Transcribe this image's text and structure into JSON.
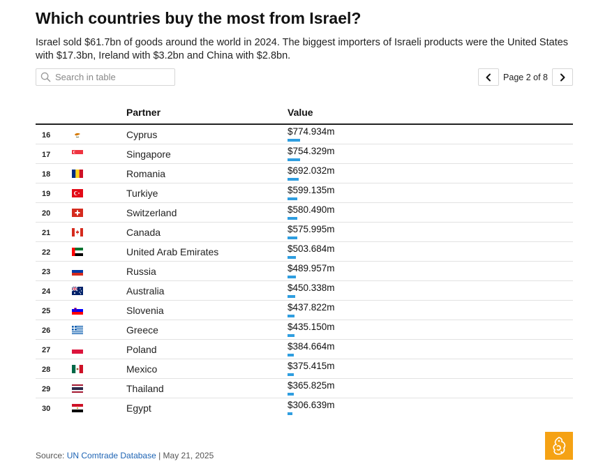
{
  "header": {
    "title": "Which countries buy the most from Israel?",
    "subtitle": "Israel sold $61.7bn of goods around the world in 2024. The biggest importers of Israeli products were the United States with $17.3bn, Ireland with $3.2bn and China with $2.8bn."
  },
  "search": {
    "placeholder": "Search in table",
    "value": ""
  },
  "pagination": {
    "label": "Page 2 of 8",
    "current": 2,
    "total": 8
  },
  "table": {
    "columns": {
      "rank": "",
      "flag": "",
      "partner": "Partner",
      "value": "Value"
    },
    "rows": [
      {
        "rank": "16",
        "flag": "cyprus-flag-icon",
        "partner": "Cyprus",
        "value": "$774.934m",
        "amount": 774.934
      },
      {
        "rank": "17",
        "flag": "singapore-flag-icon",
        "partner": "Singapore",
        "value": "$754.329m",
        "amount": 754.329
      },
      {
        "rank": "18",
        "flag": "romania-flag-icon",
        "partner": "Romania",
        "value": "$692.032m",
        "amount": 692.032
      },
      {
        "rank": "19",
        "flag": "turkiye-flag-icon",
        "partner": "Turkiye",
        "value": "$599.135m",
        "amount": 599.135
      },
      {
        "rank": "20",
        "flag": "switzerland-flag-icon",
        "partner": "Switzerland",
        "value": "$580.490m",
        "amount": 580.49
      },
      {
        "rank": "21",
        "flag": "canada-flag-icon",
        "partner": "Canada",
        "value": "$575.995m",
        "amount": 575.995
      },
      {
        "rank": "22",
        "flag": "uae-flag-icon",
        "partner": "United Arab Emirates",
        "value": "$503.684m",
        "amount": 503.684
      },
      {
        "rank": "23",
        "flag": "russia-flag-icon",
        "partner": "Russia",
        "value": "$489.957m",
        "amount": 489.957
      },
      {
        "rank": "24",
        "flag": "australia-flag-icon",
        "partner": "Australia",
        "value": "$450.338m",
        "amount": 450.338
      },
      {
        "rank": "25",
        "flag": "slovenia-flag-icon",
        "partner": "Slovenia",
        "value": "$437.822m",
        "amount": 437.822
      },
      {
        "rank": "26",
        "flag": "greece-flag-icon",
        "partner": "Greece",
        "value": "$435.150m",
        "amount": 435.15
      },
      {
        "rank": "27",
        "flag": "poland-flag-icon",
        "partner": "Poland",
        "value": "$384.664m",
        "amount": 384.664
      },
      {
        "rank": "28",
        "flag": "mexico-flag-icon",
        "partner": "Mexico",
        "value": "$375.415m",
        "amount": 375.415
      },
      {
        "rank": "29",
        "flag": "thailand-flag-icon",
        "partner": "Thailand",
        "value": "$365.825m",
        "amount": 365.825
      },
      {
        "rank": "30",
        "flag": "egypt-flag-icon",
        "partner": "Egypt",
        "value": "$306.639m",
        "amount": 306.639
      }
    ],
    "bar_max": 17300,
    "bar_color": "#2f9ee0"
  },
  "footer": {
    "source_prefix": "Source: ",
    "source_link": "UN Comtrade Database",
    "source_suffix": " | May 21, 2025",
    "logo": "al-jazeera-logo-icon",
    "logo_color": "#f5a214"
  }
}
